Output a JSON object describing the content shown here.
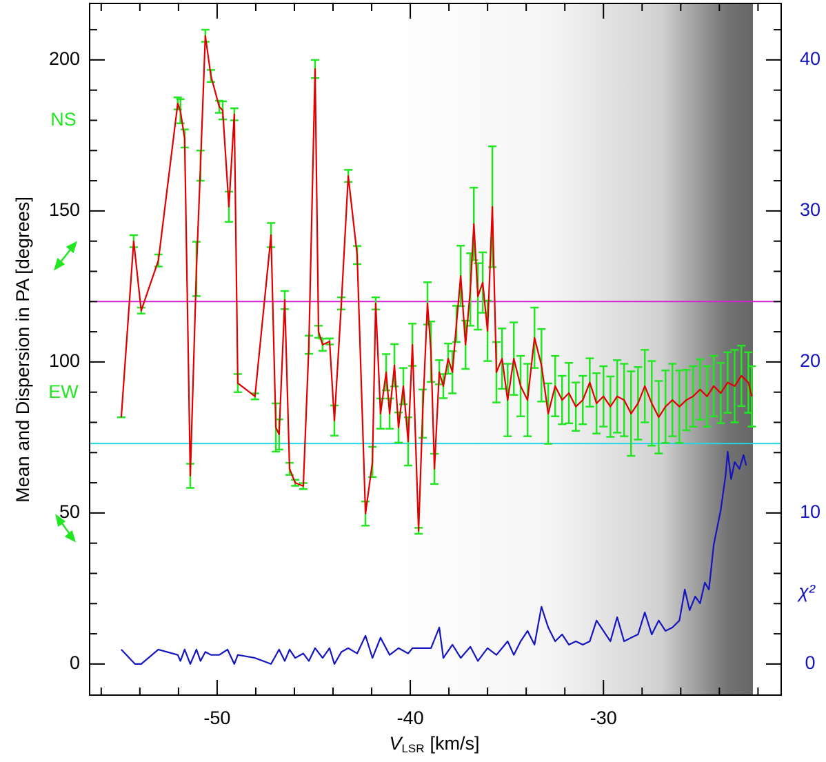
{
  "chart_data": {
    "type": "line",
    "y_label": "Mean and Dispersion in PA [degrees]",
    "x_label": "V",
    "x_label_sub": "LSR",
    "x_label_unit": "[km/s]",
    "y2_label": "χ²",
    "annotations": [
      "NS",
      "EW"
    ],
    "xlim": [
      -56.6,
      -20.8
    ],
    "xticks": [
      -50,
      -40,
      -30
    ],
    "xminorticks": [
      -56,
      -54,
      -52,
      -48,
      -46,
      -44,
      -42,
      -38,
      -36,
      -34,
      -32,
      -28,
      -26,
      -24,
      -22
    ],
    "ylim": [
      -10.3,
      218.7
    ],
    "yticks": [
      0,
      50,
      100,
      150,
      200
    ],
    "yminorticks": [
      10,
      20,
      30,
      40,
      60,
      70,
      80,
      90,
      110,
      120,
      130,
      140,
      160,
      170,
      180,
      190,
      210
    ],
    "y2lim": [
      -2.06,
      43.74
    ],
    "y2ticks": [
      0,
      10,
      20,
      30,
      40
    ],
    "hlines": [
      {
        "value": 120,
        "color": "#d81ed8"
      },
      {
        "value": 73,
        "color": "#22d6e6"
      }
    ],
    "series": [
      {
        "name": "mean PA",
        "color": "#e00000",
        "error_color": "#22e622",
        "x": [
          -54.96,
          -54.32,
          -53.93,
          -53.04,
          -52.04,
          -51.9,
          -51.68,
          -51.39,
          -51.07,
          -50.86,
          -50.61,
          -50.32,
          -49.89,
          -49.71,
          -49.39,
          -49.11,
          -48.93,
          -48.04,
          -47.21,
          -46.96,
          -46.79,
          -46.5,
          -46.25,
          -45.96,
          -45.54,
          -45.25,
          -44.93,
          -44.75,
          -44.54,
          -44.18,
          -43.93,
          -43.57,
          -43.21,
          -42.75,
          -42.32,
          -41.96,
          -41.79,
          -41.54,
          -41.25,
          -41.07,
          -40.82,
          -40.61,
          -40.36,
          -40.11,
          -39.89,
          -39.57,
          -39.36,
          -39.11,
          -38.93,
          -38.75,
          -38.5,
          -38.29,
          -38.04,
          -37.82,
          -37.61,
          -37.39,
          -37.14,
          -36.89,
          -36.71,
          -36.5,
          -36.25,
          -36,
          -35.75,
          -35.54,
          -35.25,
          -34.96,
          -34.64,
          -34.29,
          -33.93,
          -33.57,
          -33.21,
          -32.86,
          -32.5,
          -32.14,
          -31.79,
          -31.43,
          -31.07,
          -30.71,
          -30.36,
          -30,
          -29.64,
          -29.29,
          -28.93,
          -28.57,
          -28.21,
          -27.86,
          -27.5,
          -27.14,
          -26.79,
          -26.43,
          -26.07,
          -25.71,
          -25.36,
          -25,
          -24.64,
          -24.29,
          -23.93,
          -23.57,
          -23.21,
          -22.86,
          -22.5,
          -22.32
        ],
        "values": [
          81.7,
          140,
          117,
          133.6,
          185.6,
          183,
          174,
          62.3,
          130.8,
          165,
          208,
          194.7,
          184.5,
          183.3,
          151.4,
          182,
          93,
          88.6,
          142,
          78.3,
          76,
          120.5,
          64.6,
          60,
          58.9,
          105.7,
          197,
          110,
          105.7,
          106.8,
          80.6,
          119.4,
          161.6,
          135.4,
          49.8,
          66.9,
          119.4,
          82.9,
          96.6,
          82.9,
          98.9,
          78.3,
          92,
          73.7,
          105.7,
          44.1,
          82.9,
          119.4,
          103.4,
          64.6,
          96.6,
          92,
          101.1,
          96.6,
          112.6,
          128.5,
          105.7,
          124,
          145.7,
          121.7,
          126.3,
          110.3,
          151.4,
          96.6,
          101.1,
          87.4,
          101.1,
          92,
          87.4,
          108,
          98.9,
          82.9,
          92,
          87.4,
          89.7,
          85.2,
          87.4,
          93.2,
          86.3,
          88.6,
          85.2,
          88.6,
          87.4,
          82.9,
          86.3,
          92,
          86.3,
          81.7,
          85.2,
          87.4,
          85.2,
          87.4,
          88.6,
          90.9,
          88.6,
          92,
          89.7,
          93.2,
          92,
          95.4,
          93.2,
          88.6
        ],
        "errors": [
          0,
          2,
          1,
          2,
          2,
          4,
          3,
          4,
          9,
          5,
          2,
          2,
          2,
          3,
          5,
          2,
          3,
          1,
          4,
          8,
          5,
          3,
          2,
          1,
          1,
          3,
          3,
          2,
          2,
          1,
          5,
          2,
          2,
          3,
          4,
          5,
          2,
          5,
          6,
          5,
          7,
          5,
          6,
          8,
          7,
          1,
          8,
          7,
          10,
          5,
          4,
          4,
          5,
          7,
          6,
          10,
          8,
          12,
          12,
          11,
          10,
          10,
          20,
          10,
          10,
          12,
          12,
          10,
          12,
          10,
          12,
          10,
          10,
          8,
          10,
          8,
          8,
          8,
          10,
          10,
          10,
          12,
          12,
          14,
          12,
          12,
          14,
          12,
          12,
          12,
          12,
          10,
          10,
          10,
          10,
          10,
          10,
          10,
          12,
          10,
          10,
          10
        ]
      },
      {
        "name": "chi-square",
        "color": "#1414c0",
        "axis": "y2",
        "x": [
          -54.96,
          -54.25,
          -53.93,
          -53.04,
          -52.04,
          -51.9,
          -51.68,
          -51.39,
          -51.07,
          -50.86,
          -50.61,
          -50.32,
          -49.89,
          -49.46,
          -49.11,
          -48.93,
          -48.04,
          -47.21,
          -46.79,
          -46.5,
          -46.25,
          -45.96,
          -45.54,
          -45.25,
          -44.93,
          -44.54,
          -44.18,
          -43.93,
          -43.57,
          -43.21,
          -42.75,
          -42.32,
          -41.96,
          -41.54,
          -41.07,
          -40.61,
          -40.11,
          -39.89,
          -38.93,
          -38.5,
          -38.29,
          -37.82,
          -37.39,
          -36.89,
          -36.5,
          -36,
          -35.54,
          -34.96,
          -34.64,
          -34.29,
          -33.93,
          -33.57,
          -33.21,
          -32.86,
          -32.5,
          -32.14,
          -31.79,
          -31.43,
          -31.07,
          -30.71,
          -30.36,
          -30,
          -29.64,
          -29.29,
          -28.93,
          -28.57,
          -28.21,
          -27.86,
          -27.5,
          -27.14,
          -26.79,
          -26.43,
          -26.07,
          -25.79,
          -25.54,
          -25.25,
          -25,
          -24.75,
          -24.54,
          -24.29,
          -23.93,
          -23.68,
          -23.57,
          -23.39,
          -23.21,
          -22.96,
          -22.75,
          -22.61
        ],
        "values": [
          0.96,
          0,
          0,
          0.96,
          0.6,
          0.2,
          0.96,
          0,
          0.96,
          0.2,
          0.8,
          0.6,
          0.6,
          0.96,
          0,
          0.6,
          0.4,
          0,
          0.96,
          0.2,
          0.96,
          0.4,
          0.7,
          0.2,
          1.05,
          0.4,
          1.05,
          0,
          0.8,
          1.05,
          0.7,
          1.87,
          0.4,
          1.74,
          0.6,
          1.05,
          0.7,
          1.05,
          1.05,
          2.42,
          0.4,
          1.28,
          0.4,
          1.14,
          0.2,
          1.05,
          0.6,
          1.5,
          0.6,
          1.5,
          2.19,
          1.28,
          3.79,
          2.42,
          1.5,
          1.96,
          1.28,
          1.5,
          1.28,
          1.5,
          2.88,
          2.19,
          1.5,
          3.1,
          1.5,
          1.74,
          1.96,
          3.42,
          1.96,
          2.88,
          2.19,
          2.42,
          2.88,
          4.93,
          3.56,
          4.47,
          4.02,
          5.39,
          4.93,
          7.9,
          10.18,
          12.47,
          14.06,
          12.24,
          13.38,
          12.92,
          13.84,
          13.15
        ]
      }
    ]
  }
}
